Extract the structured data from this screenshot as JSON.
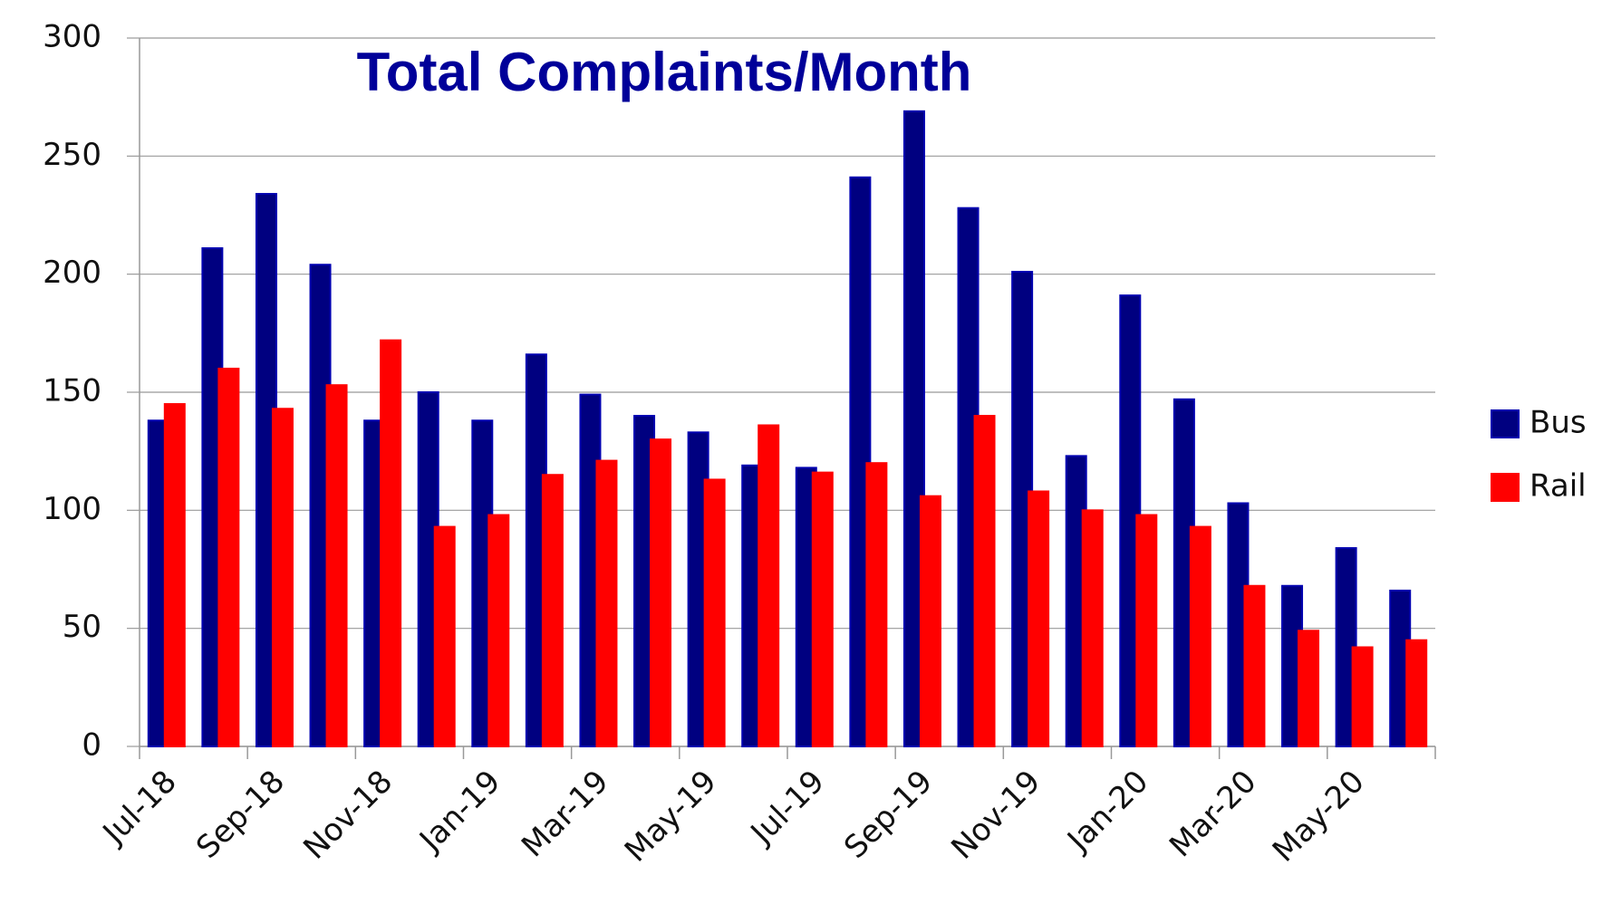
{
  "chart_data": {
    "type": "bar",
    "title": "Total Complaints/Month",
    "categories": [
      "Jul-18",
      null,
      "Sep-18",
      null,
      "Nov-18",
      null,
      "Jan-19",
      null,
      "Mar-19",
      null,
      "May-19",
      null,
      "Jul-19",
      null,
      "Sep-19",
      null,
      "Nov-19",
      null,
      "Jan-20",
      null,
      "Mar-20",
      null,
      "May-20",
      null
    ],
    "series": [
      {
        "name": "Bus",
        "color": "#000080",
        "values": [
          138,
          211,
          234,
          204,
          138,
          150,
          138,
          166,
          149,
          140,
          133,
          119,
          118,
          241,
          269,
          228,
          201,
          123,
          191,
          147,
          103,
          68,
          84,
          66
        ]
      },
      {
        "name": "Rail",
        "color": "#ff0000",
        "values": [
          145,
          160,
          143,
          153,
          172,
          93,
          98,
          115,
          121,
          130,
          113,
          136,
          116,
          120,
          106,
          140,
          108,
          100,
          98,
          93,
          68,
          49,
          42,
          45
        ]
      }
    ],
    "ylim": [
      0,
      300
    ],
    "yticks": [
      0,
      50,
      100,
      150,
      200,
      250,
      300
    ],
    "grid": true,
    "legend": "right"
  }
}
